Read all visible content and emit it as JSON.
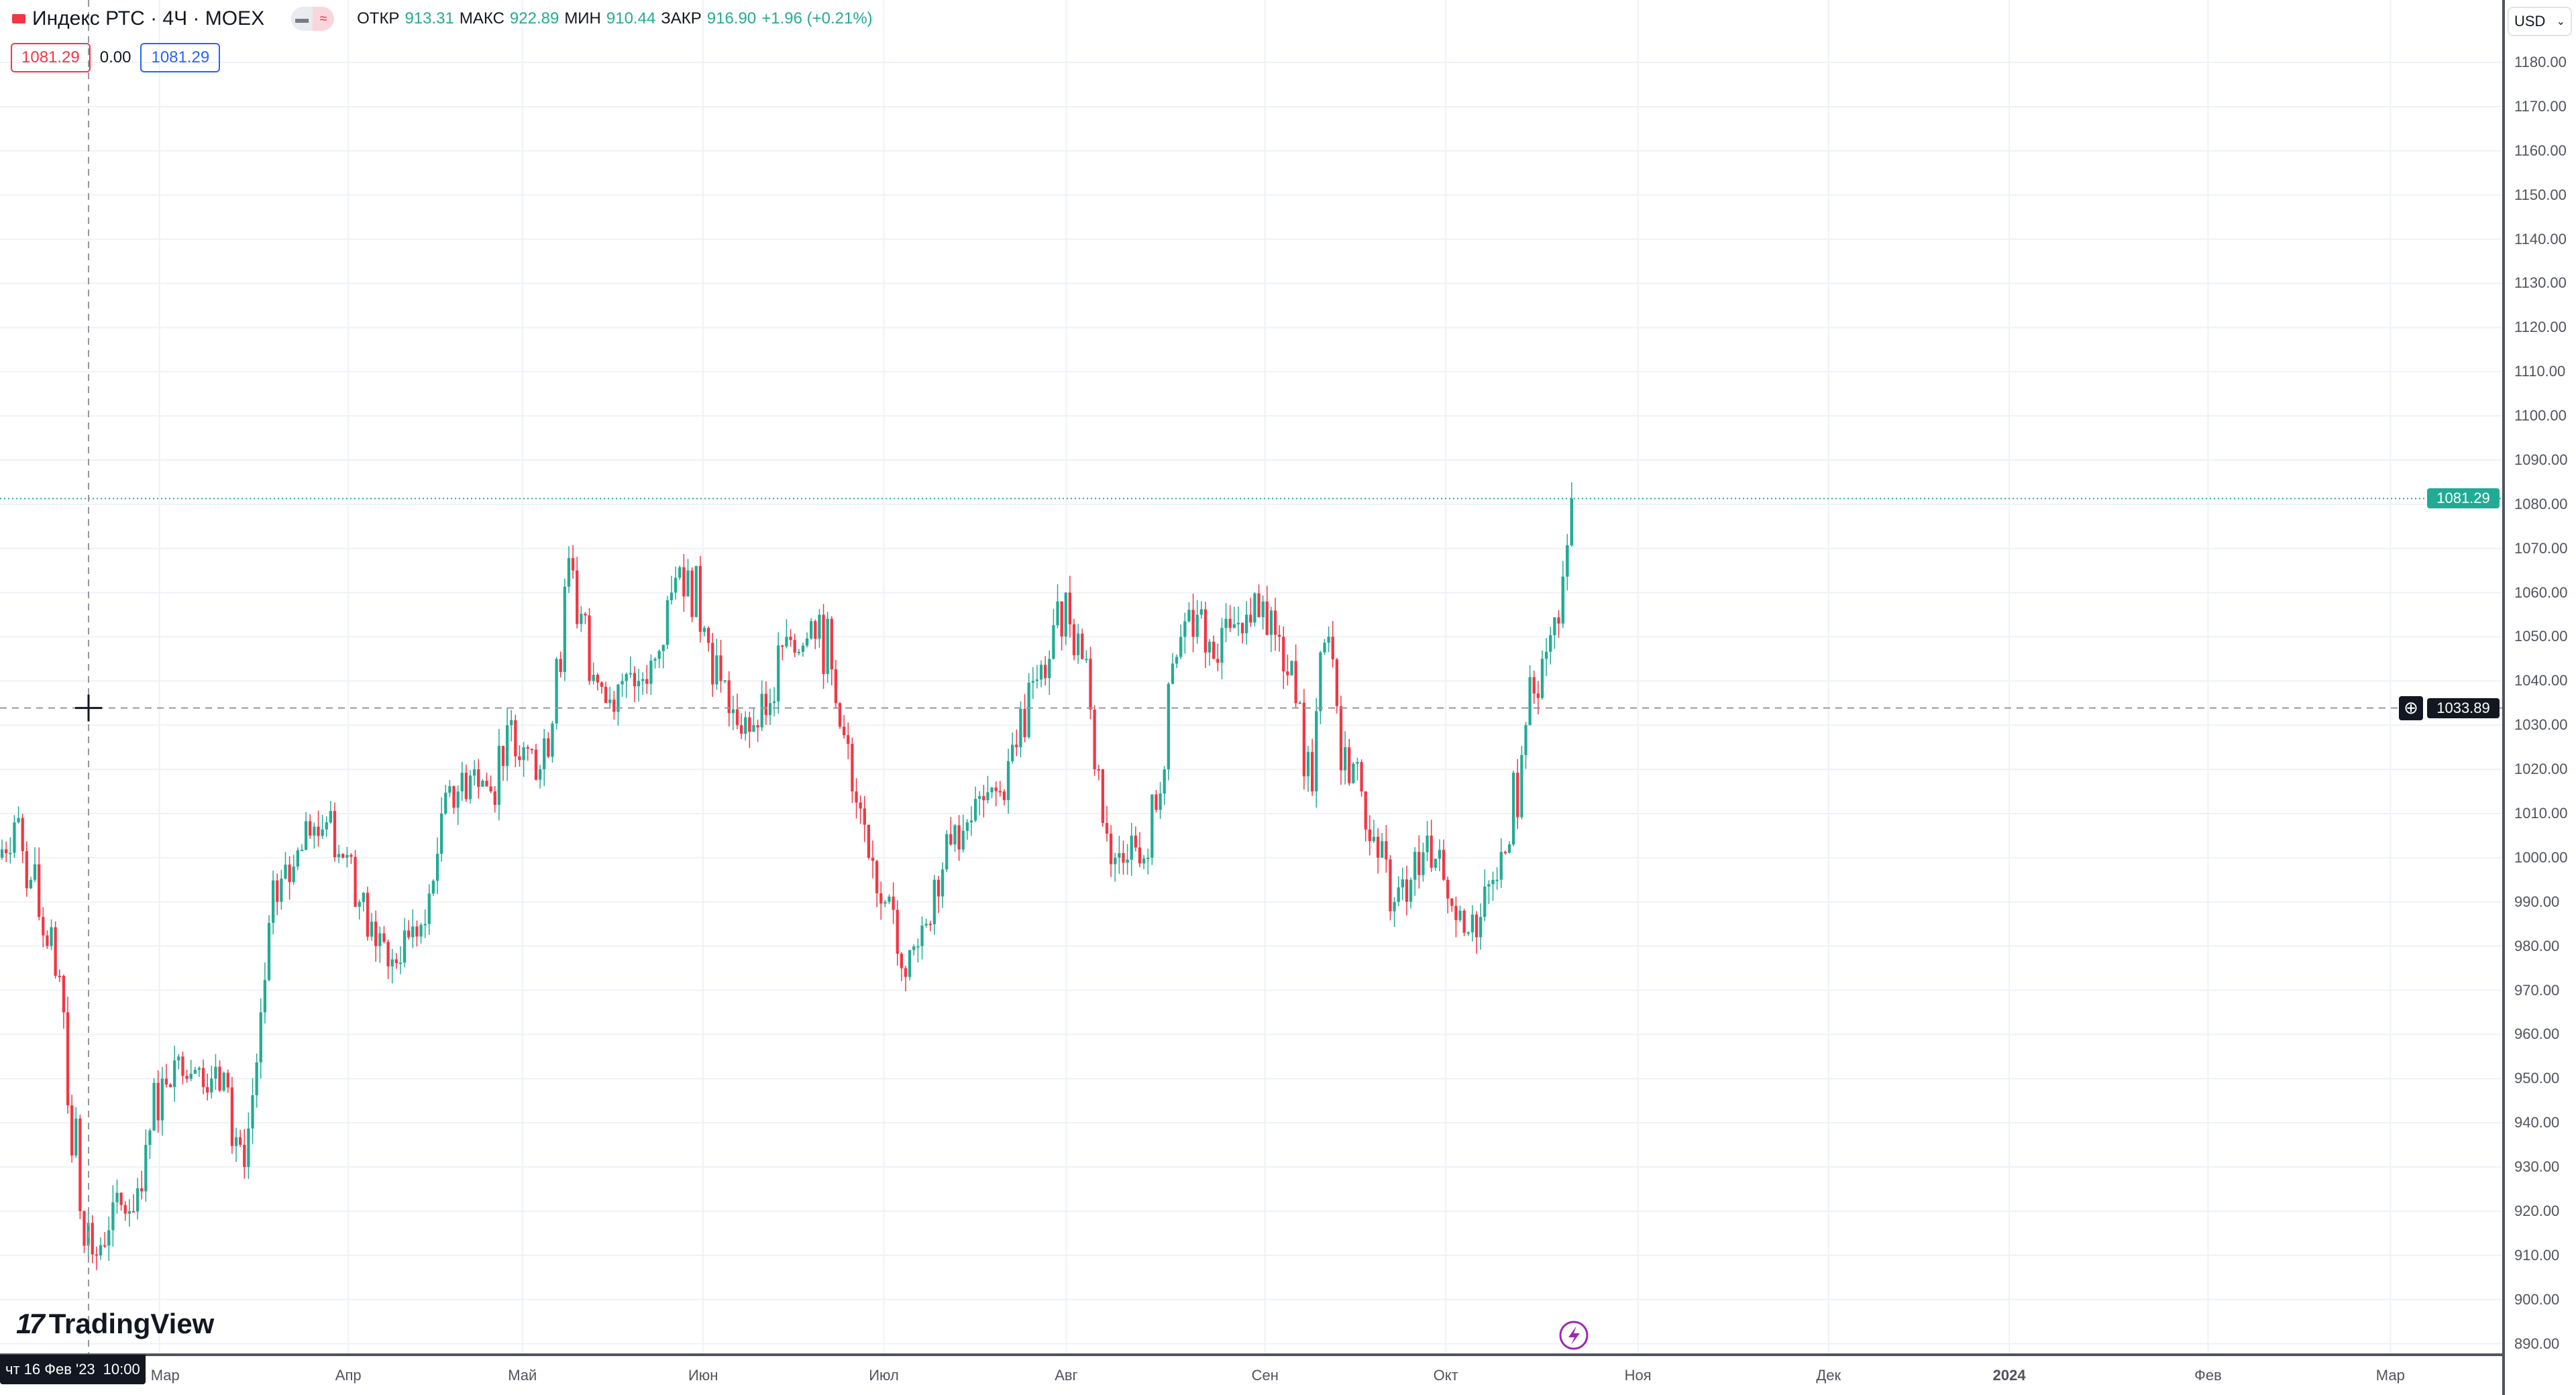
{
  "legend": {
    "title": "Индекс РТС · 4Ч · MOEX",
    "open_label": "ОТКР",
    "open": "913.31",
    "high_label": "МАКС",
    "high": "922.89",
    "low_label": "МИН",
    "low": "910.44",
    "close_label": "ЗАКР",
    "close": "916.90",
    "change": "+1.96 (+0.21%)",
    "sell_price": "1081.29",
    "spread": "0.00",
    "buy_price": "1081.29"
  },
  "currency": "USD",
  "crosshair": {
    "price": "1033.89",
    "time_day": "чт 16 Фев '23",
    "time_hour": "10:00"
  },
  "last_price": "1081.29",
  "brand": "TradingView",
  "colors": {
    "up": "#22ab94",
    "down": "#f23645",
    "grid": "#eef2f7",
    "accent": "#2962ff"
  },
  "chart_data": {
    "type": "candlestick",
    "title": "Индекс РТС · 4Ч · MOEX",
    "x_axis_ticks": [
      "Мар",
      "Апр",
      "Май",
      "Июн",
      "Июл",
      "Авг",
      "Сен",
      "Окт",
      "Ноя",
      "Дек",
      "2024",
      "Фев",
      "Мар"
    ],
    "y_axis_ticks": [
      "1180.00",
      "1170.00",
      "1160.00",
      "1150.00",
      "1140.00",
      "1130.00",
      "1120.00",
      "1110.00",
      "1100.00",
      "1090.00",
      "1080.00",
      "1070.00",
      "1060.00",
      "1050.00",
      "1040.00",
      "1030.00",
      "1020.00",
      "1010.00",
      "1000.00",
      "990.00",
      "980.00",
      "970.00",
      "960.00",
      "950.00",
      "940.00",
      "930.00",
      "920.00",
      "910.00",
      "900.00",
      "890.00"
    ],
    "ylim": [
      886,
      1183
    ],
    "step_description": "approx. close every ~3 days, Feb 2023 – Oct 2023",
    "closes": [
      1000,
      1008,
      995,
      980,
      965,
      920,
      910,
      922,
      920,
      935,
      950,
      955,
      952,
      950,
      948,
      930,
      965,
      990,
      998,
      1005,
      1008,
      1000,
      990,
      980,
      977,
      982,
      985,
      1010,
      1015,
      1020,
      1015,
      1030,
      1025,
      1020,
      1045,
      1065,
      1040,
      1035,
      1040,
      1040,
      1045,
      1060,
      1065,
      1052,
      1040,
      1030,
      1030,
      1035,
      1050,
      1048,
      1055,
      1035,
      1015,
      1000,
      990,
      975,
      980,
      995,
      1003,
      1008,
      1013,
      1015,
      1025,
      1040,
      1045,
      1060,
      1045,
      1020,
      1000,
      1005,
      1000,
      1020,
      1050,
      1055,
      1045,
      1052,
      1055,
      1058,
      1050,
      1035,
      1015,
      1050,
      1025,
      1015,
      1000,
      990,
      995,
      1005,
      995,
      988,
      982,
      995,
      1003,
      1030,
      1045,
      1053,
      1081.29
    ]
  }
}
